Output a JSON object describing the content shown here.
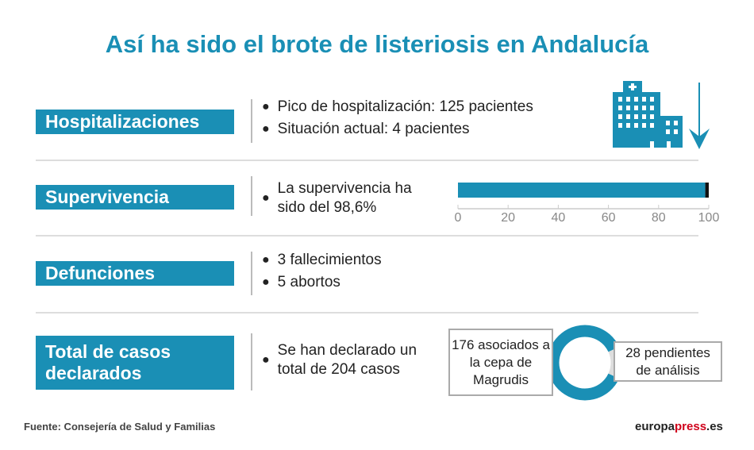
{
  "title": "Así ha sido el brote de listeriosis en Andalucía",
  "sections": [
    {
      "label": "Hospitalizaciones",
      "bullets": [
        "Pico de hospitalización: 125 pacientes",
        "Situación actual: 4 pacientes"
      ]
    },
    {
      "label": "Supervivencia",
      "bullets": [
        "La supervivencia ha sido del 98,6%"
      ]
    },
    {
      "label": "Defunciones",
      "bullets": [
        "3 fallecimientos",
        "5 abortos"
      ]
    },
    {
      "label": "Total de casos declarados",
      "bullets": [
        "Se han declarado un total de 204 casos"
      ]
    }
  ],
  "icons": [
    "hospital-icon",
    "arrow-down-icon"
  ],
  "colors": {
    "accent": "#1a8fb5",
    "remainder": "#111111",
    "pending": "#dddddd"
  },
  "chart_data": [
    {
      "type": "bar",
      "values": [
        98.6
      ],
      "xlim": [
        0,
        100
      ],
      "ticks": [
        "0",
        "20",
        "40",
        "60",
        "80",
        "100"
      ]
    },
    {
      "type": "pie",
      "slices": [
        {
          "label": "176 asociados a la cepa de Magrudis",
          "value": 176
        },
        {
          "label": "28 pendientes de análisis",
          "value": 28
        }
      ]
    }
  ],
  "footer": {
    "source": "Fuente: Consejería de Salud y Familias",
    "logo_a": "europa",
    "logo_b": "press",
    "logo_c": ".es"
  }
}
